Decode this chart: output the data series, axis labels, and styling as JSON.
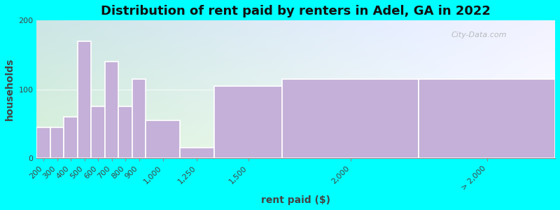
{
  "title": "Distribution of rent paid by renters in Adel, GA in 2022",
  "xlabel": "rent paid ($)",
  "ylabel": "households",
  "ylim": [
    0,
    200
  ],
  "yticks": [
    0,
    100,
    200
  ],
  "categories": [
    "200",
    "300",
    "400",
    "500",
    "600",
    "700",
    "800",
    "900",
    "1,000",
    "1,250",
    "1,500",
    "2,000",
    "> 2,000"
  ],
  "values": [
    45,
    45,
    60,
    170,
    75,
    140,
    75,
    115,
    55,
    15,
    105,
    115,
    115
  ],
  "bar_lefts": [
    0,
    1,
    2,
    3,
    4,
    5,
    6,
    7,
    8,
    10.5,
    13,
    18,
    28
  ],
  "bar_widths": [
    1,
    1,
    1,
    1,
    1,
    1,
    1,
    1,
    2.5,
    2.5,
    5,
    10,
    10
  ],
  "xlim": [
    0,
    38
  ],
  "tick_positions": [
    0.5,
    1.5,
    2.5,
    3.5,
    4.5,
    5.5,
    6.5,
    7.5,
    9.25,
    11.75,
    15.5,
    23,
    33
  ],
  "bar_color": "#c4b0d8",
  "bar_edge_color": "white",
  "outer_background": "#00ffff",
  "title_fontsize": 13,
  "axis_label_fontsize": 10,
  "tick_fontsize": 8,
  "watermark_text": "City-Data.com"
}
